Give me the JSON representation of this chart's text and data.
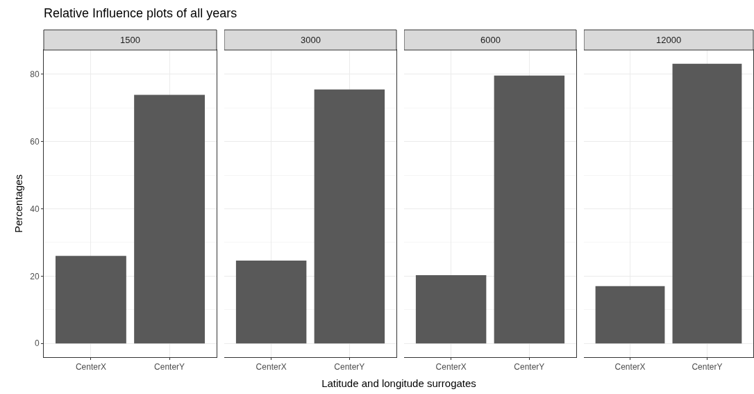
{
  "chart_data": [
    {
      "type": "bar",
      "title": "Relative Influence plots of all years",
      "subtitle": "1500",
      "ylabel": "Percentages",
      "categories": [
        "CenterX",
        "CenterY"
      ],
      "values": [
        26.0,
        73.9
      ],
      "color": "#595959",
      "ylim": [
        -4.1,
        87.2
      ],
      "yticks": [
        0,
        20,
        40,
        60,
        80
      ],
      "grid": true
    },
    {
      "type": "bar",
      "subtitle": "3000",
      "xlabel": "Latitude and longitude surrogates",
      "categories": [
        "CenterX",
        "CenterY"
      ],
      "values": [
        24.6,
        75.5
      ],
      "color": "#595959",
      "ylim": [
        -4.1,
        87.2
      ],
      "yticks": [
        0,
        20,
        40,
        60,
        80
      ],
      "grid": true,
      "tick_labels": "x"
    },
    {
      "type": "bar",
      "subtitle": "6000",
      "categories": [
        "CenterX",
        "CenterY"
      ],
      "values": [
        20.3,
        79.6
      ],
      "color": "#595959",
      "ylim": [
        -4.1,
        87.2
      ],
      "yticks": [
        0,
        20,
        40,
        60,
        80
      ],
      "grid": true,
      "tick_labels": "x"
    },
    {
      "type": "bar",
      "subtitle": "12000",
      "categories": [
        "CenterX",
        "CenterY"
      ],
      "values": [
        17.0,
        83.1
      ],
      "color": "#595959",
      "ylim": [
        -4.1,
        87.2
      ],
      "yticks": [
        0,
        20,
        40,
        60,
        80
      ],
      "grid": true,
      "tick_labels": "x"
    }
  ]
}
